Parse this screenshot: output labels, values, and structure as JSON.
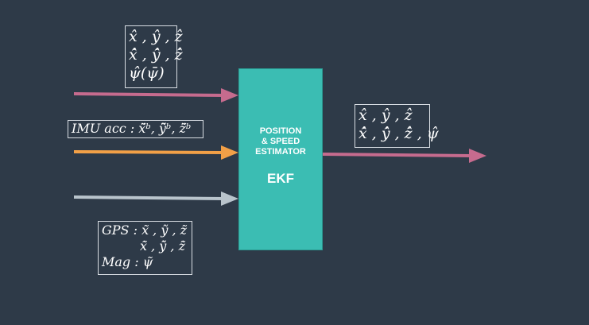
{
  "colors": {
    "background": "#2e3a48",
    "block": "#3bbdb3",
    "arrow_pink": "#c66b8e",
    "arrow_orange": "#f2a047",
    "arrow_gray": "#b9c4cc",
    "box_border": "#d8dde3"
  },
  "estimator": {
    "title": "POSITION\n& SPEED\nESTIMATOR",
    "name": "EKF"
  },
  "labels": {
    "feedback": {
      "line1": "x̂ , ŷ , ẑ",
      "line2": "x̂̇ , ŷ̇ , ẑ̇",
      "line3": "ψ̂(ψ̄)"
    },
    "imu": {
      "line1": "IMU acc :  x̃̈ᵇ, ỹ̈ᵇ, z̃̈ᵇ"
    },
    "sensors": {
      "line1": "GPS :  x̃ , ỹ , z̃",
      "line2": "x̃̇ , ỹ̇ , z̃̇",
      "line3": "Mag : ψ̃"
    },
    "output": {
      "line1": "x̂ , ŷ , ẑ",
      "line2": "x̂̇ , ŷ̇ , ẑ̇ , ψ̂"
    }
  }
}
